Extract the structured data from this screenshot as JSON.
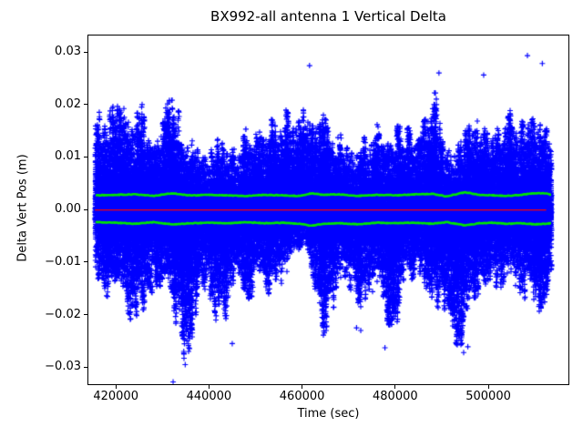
{
  "figure": {
    "title": "BX992-all antenna 1 Vertical Delta",
    "xlabel": "Time (sec)",
    "ylabel": "Delta Vert Pos (m)"
  },
  "chart_data": {
    "type": "scatter",
    "title": "BX992-all antenna 1 Vertical Delta",
    "xlabel": "Time (sec)",
    "ylabel": "Delta Vert Pos (m)",
    "grid": false,
    "legend": "none",
    "xlim": [
      413900,
      517400
    ],
    "ylim": [
      -0.0334,
      0.0333
    ],
    "xticks": [
      420000,
      440000,
      460000,
      480000,
      500000
    ],
    "xtick_labels": [
      "420000",
      "440000",
      "460000",
      "480000",
      "500000"
    ],
    "yticks": [
      0.03,
      0.02,
      0.01,
      0.0,
      -0.01,
      -0.02,
      -0.03
    ],
    "ytick_labels": [
      "0.03",
      "0.02",
      "0.01",
      "0.00",
      "−0.01",
      "−0.02",
      "−0.03"
    ],
    "colors": {
      "scatter": "#0000ff",
      "band": "#00e600",
      "zero_line": "#ff0000",
      "text": "#000000"
    },
    "series": {
      "scatter": {
        "name": "antenna-1-vertical-delta",
        "marker": "+",
        "color": "#0000ff",
        "t_start": 415500,
        "t_end": 513600,
        "envelope_upper": [
          [
            415500,
            0.016
          ],
          [
            417000,
            0.02
          ],
          [
            419000,
            0.019
          ],
          [
            421000,
            0.0222
          ],
          [
            423000,
            0.0172
          ],
          [
            425000,
            0.0213
          ],
          [
            427000,
            0.0172
          ],
          [
            429000,
            0.0152
          ],
          [
            431000,
            0.02
          ],
          [
            432500,
            0.024
          ],
          [
            434500,
            0.0146
          ],
          [
            436500,
            0.0132
          ],
          [
            438500,
            0.0098
          ],
          [
            440500,
            0.0128
          ],
          [
            442500,
            0.0136
          ],
          [
            444500,
            0.0112
          ],
          [
            446500,
            0.012
          ],
          [
            448500,
            0.0166
          ],
          [
            450500,
            0.0143
          ],
          [
            452500,
            0.0166
          ],
          [
            454500,
            0.0178
          ],
          [
            456500,
            0.019
          ],
          [
            458500,
            0.0166
          ],
          [
            460500,
            0.0224
          ],
          [
            462500,
            0.0187
          ],
          [
            464500,
            0.0181
          ],
          [
            466500,
            0.0149
          ],
          [
            468500,
            0.0143
          ],
          [
            470500,
            0.0107
          ],
          [
            472500,
            0.0133
          ],
          [
            474500,
            0.0143
          ],
          [
            476500,
            0.0166
          ],
          [
            478500,
            0.0149
          ],
          [
            480500,
            0.0159
          ],
          [
            482500,
            0.0154
          ],
          [
            484500,
            0.016
          ],
          [
            486500,
            0.0172
          ],
          [
            488500,
            0.023
          ],
          [
            490500,
            0.0112
          ],
          [
            492500,
            0.0112
          ],
          [
            494500,
            0.0133
          ],
          [
            496500,
            0.019
          ],
          [
            498500,
            0.0181
          ],
          [
            500500,
            0.0154
          ],
          [
            502500,
            0.0154
          ],
          [
            504500,
            0.019
          ],
          [
            506500,
            0.0172
          ],
          [
            508500,
            0.016
          ],
          [
            510500,
            0.0192
          ],
          [
            512500,
            0.0168
          ],
          [
            513600,
            0.0145
          ]
        ],
        "envelope_lower": [
          [
            415500,
            -0.012
          ],
          [
            417000,
            -0.0158
          ],
          [
            419000,
            -0.017
          ],
          [
            421000,
            -0.0188
          ],
          [
            423000,
            -0.0222
          ],
          [
            425000,
            -0.0205
          ],
          [
            427000,
            -0.017
          ],
          [
            429000,
            -0.0147
          ],
          [
            431000,
            -0.017
          ],
          [
            432500,
            -0.021
          ],
          [
            434800,
            -0.0292
          ],
          [
            436500,
            -0.0246
          ],
          [
            438500,
            -0.0153
          ],
          [
            440500,
            -0.0188
          ],
          [
            442500,
            -0.0233
          ],
          [
            444500,
            -0.0188
          ],
          [
            446500,
            -0.0141
          ],
          [
            448500,
            -0.0181
          ],
          [
            450500,
            -0.0135
          ],
          [
            452500,
            -0.017
          ],
          [
            454500,
            -0.0147
          ],
          [
            456500,
            -0.0141
          ],
          [
            458500,
            -0.0085
          ],
          [
            460500,
            -0.0062
          ],
          [
            462500,
            -0.0151
          ],
          [
            464500,
            -0.024
          ],
          [
            466500,
            -0.021
          ],
          [
            468500,
            -0.0141
          ],
          [
            470500,
            -0.0158
          ],
          [
            472500,
            -0.0205
          ],
          [
            474500,
            -0.0164
          ],
          [
            476500,
            -0.0147
          ],
          [
            478500,
            -0.022
          ],
          [
            480500,
            -0.0216
          ],
          [
            482500,
            -0.0141
          ],
          [
            484500,
            -0.0125
          ],
          [
            486500,
            -0.0147
          ],
          [
            488500,
            -0.0176
          ],
          [
            490500,
            -0.0205
          ],
          [
            492500,
            -0.025
          ],
          [
            494500,
            -0.0268
          ],
          [
            496500,
            -0.0176
          ],
          [
            498500,
            -0.0153
          ],
          [
            500500,
            -0.0147
          ],
          [
            502500,
            -0.017
          ],
          [
            504500,
            -0.012
          ],
          [
            506500,
            -0.0158
          ],
          [
            508500,
            -0.0176
          ],
          [
            510500,
            -0.02
          ],
          [
            512500,
            -0.017
          ],
          [
            513600,
            -0.013
          ]
        ],
        "outliers_high": [
          [
            461600,
            0.0274
          ],
          [
            489400,
            0.026
          ],
          [
            499000,
            0.0256
          ],
          [
            508400,
            0.0293
          ],
          [
            511600,
            0.0278
          ]
        ],
        "outliers_low": [
          [
            432300,
            -0.0328
          ],
          [
            434900,
            -0.0295
          ],
          [
            445000,
            -0.0255
          ],
          [
            471700,
            -0.0225
          ],
          [
            472600,
            -0.023
          ],
          [
            477800,
            -0.0263
          ],
          [
            494700,
            -0.0272
          ],
          [
            495600,
            -0.0261
          ]
        ]
      },
      "mean_upper": {
        "name": "upper-mean-band",
        "color": "#00e600",
        "points": [
          [
            415500,
            0.0027
          ],
          [
            420000,
            0.0028
          ],
          [
            424000,
            0.0029
          ],
          [
            428000,
            0.0026
          ],
          [
            432000,
            0.0031
          ],
          [
            436000,
            0.0027
          ],
          [
            440000,
            0.0028
          ],
          [
            444000,
            0.0027
          ],
          [
            448000,
            0.0026
          ],
          [
            452000,
            0.0028
          ],
          [
            456000,
            0.0027
          ],
          [
            459500,
            0.0026
          ],
          [
            462000,
            0.0031
          ],
          [
            464500,
            0.0028
          ],
          [
            468000,
            0.0029
          ],
          [
            472000,
            0.0026
          ],
          [
            476000,
            0.0028
          ],
          [
            480000,
            0.0027
          ],
          [
            484000,
            0.0029
          ],
          [
            488000,
            0.003
          ],
          [
            491000,
            0.0025
          ],
          [
            495000,
            0.0033
          ],
          [
            498000,
            0.0028
          ],
          [
            501000,
            0.0027
          ],
          [
            504000,
            0.0026
          ],
          [
            507000,
            0.0028
          ],
          [
            510000,
            0.0031
          ],
          [
            512500,
            0.0031
          ],
          [
            513600,
            0.0028
          ]
        ]
      },
      "mean_lower": {
        "name": "lower-mean-band",
        "color": "#00e600",
        "points": [
          [
            415500,
            -0.0024
          ],
          [
            420000,
            -0.0025
          ],
          [
            424000,
            -0.0027
          ],
          [
            428000,
            -0.0024
          ],
          [
            432000,
            -0.0028
          ],
          [
            436000,
            -0.0026
          ],
          [
            440000,
            -0.0025
          ],
          [
            444000,
            -0.0026
          ],
          [
            448000,
            -0.0024
          ],
          [
            452000,
            -0.0026
          ],
          [
            456000,
            -0.0025
          ],
          [
            459500,
            -0.0027
          ],
          [
            462000,
            -0.0031
          ],
          [
            464500,
            -0.0027
          ],
          [
            468000,
            -0.0026
          ],
          [
            472000,
            -0.0028
          ],
          [
            476000,
            -0.0025
          ],
          [
            480000,
            -0.0026
          ],
          [
            484000,
            -0.0025
          ],
          [
            488000,
            -0.0027
          ],
          [
            491000,
            -0.0024
          ],
          [
            495000,
            -0.003
          ],
          [
            498000,
            -0.0026
          ],
          [
            501000,
            -0.0025
          ],
          [
            504000,
            -0.0027
          ],
          [
            507000,
            -0.0026
          ],
          [
            510000,
            -0.0028
          ],
          [
            512500,
            -0.0027
          ],
          [
            513600,
            -0.0026
          ]
        ]
      },
      "zero_line": {
        "name": "zero-reference-line",
        "color": "#ff0000",
        "y": 0
      }
    }
  }
}
